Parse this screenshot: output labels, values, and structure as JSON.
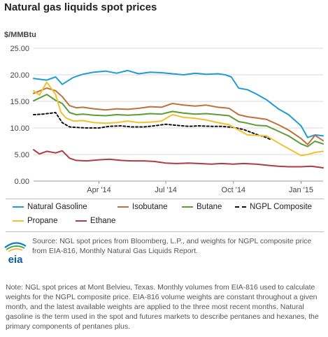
{
  "title": "Natural gas liquids spot prices",
  "y_unit": "$/MMBtu",
  "source": "Source: NGL spot prices from Bloomberg, L.P., and weights for NGPL composite price from EIA-816, Monthly Natural Gas Liquids Report.",
  "note": "Note: NGL spot prices at Mont Belvieu, Texas. Monthly volumes from EIA-816 used to calculate weights for the NGPL composite price. EIA-816 volume weights are constant throughout a given month, and the latest available weights are applied to the three most recent months. Natural gasoline is the term used in the spot and futures markets to describe pentanes and hexanes, the primary components of pentanes plus.",
  "logo_text": "eia",
  "chart_data": {
    "type": "line",
    "ylabel": "$/MMBtu",
    "ylim": [
      0,
      25
    ],
    "yticks": [
      "0.00",
      "5.00",
      "10.00",
      "15.00",
      "20.00",
      "25.00"
    ],
    "xlim": [
      "2014-01-02",
      "2015-01-31"
    ],
    "xticks": [
      {
        "date": "2014-04-01",
        "label": "Apr '14"
      },
      {
        "date": "2014-07-01",
        "label": "Jul '14"
      },
      {
        "date": "2014-10-01",
        "label": "Oct '14"
      },
      {
        "date": "2015-01-01",
        "label": "Jan '15"
      }
    ],
    "grid": true,
    "legend_position": "bottom",
    "series": [
      {
        "name": "Natural Gasoline",
        "color": "#1f9bd7",
        "dash": false,
        "x": [
          "2014-01-02",
          "2014-01-20",
          "2014-02-01",
          "2014-02-10",
          "2014-02-25",
          "2014-03-10",
          "2014-03-25",
          "2014-04-10",
          "2014-04-25",
          "2014-05-10",
          "2014-05-25",
          "2014-06-10",
          "2014-06-25",
          "2014-07-10",
          "2014-07-25",
          "2014-08-10",
          "2014-08-25",
          "2014-09-10",
          "2014-09-20",
          "2014-09-28",
          "2014-10-08",
          "2014-10-20",
          "2014-11-01",
          "2014-11-15",
          "2014-12-01",
          "2014-12-15",
          "2015-01-01",
          "2015-01-10",
          "2015-01-20",
          "2015-01-31"
        ],
        "y": [
          19.3,
          19.0,
          19.6,
          18.2,
          19.5,
          20.1,
          20.5,
          20.7,
          20.3,
          20.8,
          20.2,
          20.5,
          20.4,
          20.2,
          20.0,
          20.3,
          20.1,
          20.2,
          20.0,
          19.6,
          17.5,
          17.2,
          16.4,
          15.3,
          13.6,
          12.5,
          10.4,
          8.2,
          8.7,
          8.5
        ]
      },
      {
        "name": "Isobutane",
        "color": "#c0703a",
        "dash": false,
        "x": [
          "2014-01-02",
          "2014-01-20",
          "2014-02-01",
          "2014-02-10",
          "2014-02-20",
          "2014-03-01",
          "2014-03-10",
          "2014-03-25",
          "2014-04-10",
          "2014-04-25",
          "2014-05-10",
          "2014-05-25",
          "2014-06-10",
          "2014-06-25",
          "2014-07-10",
          "2014-07-25",
          "2014-08-10",
          "2014-08-25",
          "2014-09-10",
          "2014-09-25",
          "2014-10-08",
          "2014-10-20",
          "2014-11-01",
          "2014-11-15",
          "2014-12-01",
          "2014-12-15",
          "2015-01-01",
          "2015-01-10",
          "2015-01-20",
          "2015-01-31"
        ],
        "y": [
          16.5,
          17.5,
          17.0,
          15.9,
          14.2,
          13.8,
          13.9,
          13.6,
          13.4,
          13.6,
          13.5,
          13.7,
          14.0,
          13.9,
          14.6,
          14.3,
          14.1,
          14.3,
          13.9,
          13.7,
          12.5,
          12.1,
          11.9,
          11.6,
          10.6,
          9.6,
          8.0,
          6.9,
          8.6,
          7.6
        ]
      },
      {
        "name": "Butane",
        "color": "#5b9c35",
        "dash": false,
        "x": [
          "2014-01-02",
          "2014-01-20",
          "2014-02-01",
          "2014-02-10",
          "2014-02-20",
          "2014-03-01",
          "2014-03-10",
          "2014-03-25",
          "2014-04-10",
          "2014-04-25",
          "2014-05-10",
          "2014-05-25",
          "2014-06-10",
          "2014-06-25",
          "2014-07-10",
          "2014-07-25",
          "2014-08-10",
          "2014-08-25",
          "2014-09-10",
          "2014-09-25",
          "2014-10-08",
          "2014-10-20",
          "2014-11-01",
          "2014-11-15",
          "2014-12-01",
          "2014-12-15",
          "2015-01-01",
          "2015-01-10",
          "2015-01-20",
          "2015-01-31"
        ],
        "y": [
          15.1,
          16.3,
          15.2,
          14.6,
          12.9,
          12.5,
          12.6,
          12.4,
          12.3,
          12.5,
          12.4,
          12.5,
          12.7,
          12.6,
          13.1,
          12.8,
          12.6,
          12.7,
          12.5,
          12.3,
          11.2,
          10.9,
          10.5,
          10.4,
          9.4,
          8.5,
          7.0,
          6.5,
          7.5,
          7.0
        ]
      },
      {
        "name": "NGPL Composite",
        "color": "#111111",
        "dash": true,
        "x": [
          "2014-01-02",
          "2014-01-15",
          "2014-02-01",
          "2014-02-10",
          "2014-02-20",
          "2014-03-01",
          "2014-03-15",
          "2014-04-01",
          "2014-04-15",
          "2014-05-01",
          "2014-05-15",
          "2014-06-01",
          "2014-06-15",
          "2014-07-01",
          "2014-07-15",
          "2014-08-01",
          "2014-08-15",
          "2014-09-01",
          "2014-09-15",
          "2014-10-01",
          "2014-10-15",
          "2014-11-01",
          "2014-11-15",
          "2014-11-22"
        ],
        "y": [
          12.5,
          12.6,
          12.9,
          11.0,
          10.2,
          10.1,
          10.0,
          10.0,
          10.3,
          10.4,
          10.2,
          10.2,
          10.4,
          10.7,
          10.5,
          10.3,
          10.4,
          10.3,
          10.3,
          10.1,
          9.7,
          8.8,
          8.2,
          7.7
        ]
      },
      {
        "name": "Propane",
        "color": "#f2c12e",
        "dash": false,
        "x": [
          "2014-01-02",
          "2014-01-10",
          "2014-01-20",
          "2014-02-01",
          "2014-02-08",
          "2014-02-15",
          "2014-02-25",
          "2014-03-10",
          "2014-03-25",
          "2014-04-10",
          "2014-04-25",
          "2014-05-10",
          "2014-05-25",
          "2014-06-10",
          "2014-06-25",
          "2014-07-10",
          "2014-07-25",
          "2014-08-10",
          "2014-08-25",
          "2014-09-10",
          "2014-09-25",
          "2014-10-08",
          "2014-10-20",
          "2014-11-01",
          "2014-11-15",
          "2014-12-01",
          "2014-12-15",
          "2015-01-01",
          "2015-01-10",
          "2015-01-20",
          "2015-01-31"
        ],
        "y": [
          17.0,
          16.2,
          18.6,
          16.3,
          13.0,
          11.9,
          11.3,
          11.4,
          11.0,
          10.9,
          11.0,
          11.3,
          11.0,
          11.1,
          11.3,
          12.5,
          12.0,
          11.8,
          11.5,
          11.0,
          10.6,
          9.6,
          8.7,
          8.6,
          8.5,
          7.2,
          6.1,
          4.8,
          5.0,
          5.4,
          5.6
        ]
      },
      {
        "name": "Ethane",
        "color": "#b03a48",
        "dash": false,
        "x": [
          "2014-01-02",
          "2014-01-10",
          "2014-01-20",
          "2014-02-01",
          "2014-02-10",
          "2014-02-20",
          "2014-03-01",
          "2014-03-15",
          "2014-04-01",
          "2014-04-15",
          "2014-05-01",
          "2014-05-15",
          "2014-06-01",
          "2014-06-15",
          "2014-07-01",
          "2014-07-15",
          "2014-08-01",
          "2014-08-15",
          "2014-09-01",
          "2014-09-15",
          "2014-10-01",
          "2014-10-15",
          "2014-11-01",
          "2014-11-15",
          "2014-12-01",
          "2014-12-15",
          "2015-01-01",
          "2015-01-15",
          "2015-01-31"
        ],
        "y": [
          5.9,
          5.1,
          5.6,
          5.3,
          5.7,
          4.3,
          3.9,
          3.8,
          4.0,
          4.1,
          3.9,
          3.8,
          3.8,
          3.7,
          3.4,
          3.3,
          3.4,
          3.3,
          3.2,
          3.3,
          3.2,
          3.3,
          3.2,
          3.0,
          2.8,
          2.7,
          2.7,
          2.8,
          2.5
        ]
      }
    ]
  },
  "legend": [
    {
      "label": "Natural Gasoline",
      "color": "#1f9bd7",
      "dash": false
    },
    {
      "label": "Isobutane",
      "color": "#c0703a",
      "dash": false
    },
    {
      "label": "Butane",
      "color": "#5b9c35",
      "dash": false
    },
    {
      "label": "NGPL Composite",
      "color": "#111111",
      "dash": true
    },
    {
      "label": "Propane",
      "color": "#f2c12e",
      "dash": false
    },
    {
      "label": "Ethane",
      "color": "#b03a48",
      "dash": false
    }
  ]
}
